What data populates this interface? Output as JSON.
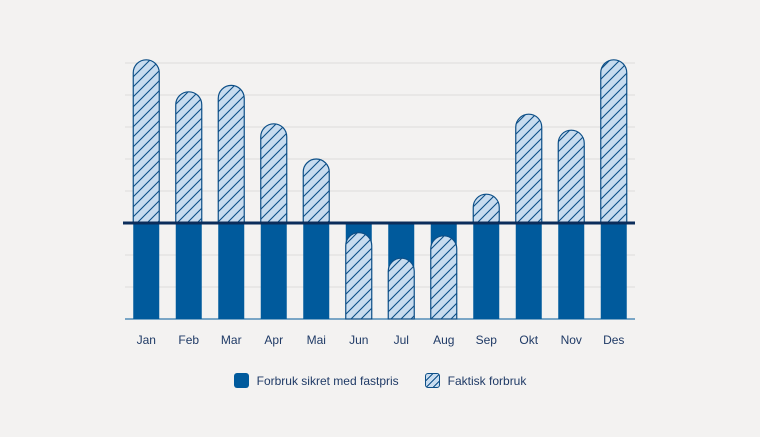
{
  "chart_data": {
    "type": "bar",
    "categories": [
      "Jan",
      "Feb",
      "Mar",
      "Apr",
      "Mai",
      "Jun",
      "Jul",
      "Aug",
      "Sep",
      "Okt",
      "Nov",
      "Des"
    ],
    "baseline": 3,
    "ylim": [
      0,
      8
    ],
    "series": [
      {
        "name": "Forbruk sikret med fastpris",
        "values": [
          3,
          3,
          3,
          3,
          3,
          3,
          3,
          3,
          3,
          3,
          3,
          3
        ]
      },
      {
        "name": "Faktisk forbruk",
        "values": [
          8.1,
          7.1,
          7.3,
          6.1,
          5.0,
          2.7,
          1.9,
          2.6,
          3.9,
          6.4,
          5.9,
          8.1
        ]
      }
    ],
    "grid": true,
    "legend_position": "bottom",
    "colors": {
      "fixed": "#005a9c",
      "actual_fill": "#c8dcef",
      "actual_line": "#0d4f87",
      "baseline": "#0b2d5b",
      "grid": "#dcdcdc",
      "label": "#1f3a66"
    }
  }
}
